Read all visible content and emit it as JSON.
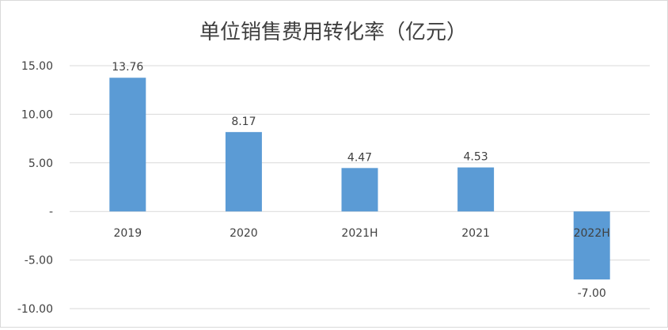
{
  "chart_data": {
    "type": "bar",
    "title": "单位销售费用转化率（亿元）",
    "categories": [
      "2019",
      "2020",
      "2021H",
      "2021",
      "2022H"
    ],
    "values": [
      13.76,
      8.17,
      4.47,
      4.53,
      -7.0
    ],
    "data_labels": [
      "13.76",
      "8.17",
      "4.47",
      "4.53",
      "-7.00"
    ],
    "y_ticks": [
      15,
      10,
      5,
      0,
      -5,
      -10
    ],
    "y_tick_labels": [
      "15.00",
      "10.00",
      "5.00",
      "-",
      "-5.00",
      "-10.00"
    ],
    "ylim": [
      -10,
      15
    ],
    "xlabel": "",
    "ylabel": "",
    "grid": true,
    "legend": "none",
    "colors": {
      "bar": "#5b9bd5",
      "grid": "#d9d9d9",
      "text": "#404040"
    }
  }
}
